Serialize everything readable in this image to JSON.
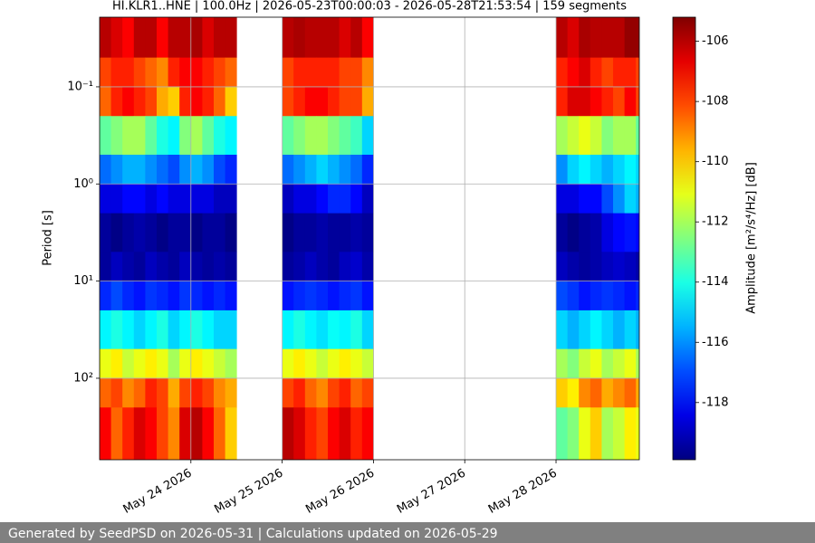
{
  "chart_data": {
    "type": "spectrogram",
    "title": "HI.KLR1..HNE | 100.0Hz | 2026-05-23T00:00:03 - 2026-05-28T21:53:54 | 159 segments",
    "ylabel": "Period [s]",
    "colorbar_label": "Amplitude [m²/s⁴/Hz] [dB]",
    "colormap": "jet",
    "yscale": "log",
    "y_inverted": true,
    "grid": true,
    "xlim": [
      "2026-05-23T00:00:03",
      "2026-05-28T21:53:54"
    ],
    "xticks": [
      {
        "value": "2026-05-24",
        "label": "May 24 2026"
      },
      {
        "value": "2026-05-25",
        "label": "May 25 2026"
      },
      {
        "value": "2026-05-26",
        "label": "May 26 2026"
      },
      {
        "value": "2026-05-27",
        "label": "May 27 2026"
      },
      {
        "value": "2026-05-28",
        "label": "May 28 2026"
      }
    ],
    "ylim": [
      0.0192,
      690
    ],
    "yticks": [
      {
        "value": 0.1,
        "label": "10⁻¹"
      },
      {
        "value": 1,
        "label": "10⁰"
      },
      {
        "value": 10,
        "label": "10¹"
      },
      {
        "value": 100,
        "label": "10²"
      }
    ],
    "clim": [
      -119.9,
      -105.2
    ],
    "cticks": [
      -106,
      -108,
      -110,
      -112,
      -114,
      -116,
      -118
    ],
    "x": [
      "2026-05-23T00:00",
      "2026-05-23T03:00",
      "2026-05-23T06:00",
      "2026-05-23T09:00",
      "2026-05-23T12:00",
      "2026-05-23T15:00",
      "2026-05-23T18:00",
      "2026-05-23T21:00",
      "2026-05-24T00:00",
      "2026-05-24T03:00",
      "2026-05-24T06:00",
      "2026-05-24T09:00",
      "2026-05-25T00:00",
      "2026-05-25T03:00",
      "2026-05-25T06:00",
      "2026-05-25T09:00",
      "2026-05-25T12:00",
      "2026-05-25T15:00",
      "2026-05-25T18:00",
      "2026-05-25T21:00",
      "2026-05-28T00:00",
      "2026-05-28T03:00",
      "2026-05-28T06:00",
      "2026-05-28T09:00",
      "2026-05-28T12:00",
      "2026-05-28T15:00",
      "2026-05-28T18:00",
      "2026-05-28T21:00"
    ],
    "ybins": [
      0.0192,
      0.05,
      0.1,
      0.2,
      0.5,
      1,
      2,
      5,
      10,
      20,
      50,
      100,
      200,
      690
    ],
    "values": [
      [
        -106,
        -106.5,
        -107,
        -106,
        -106,
        -107,
        -106,
        -106,
        -105.8,
        -106.5,
        -106,
        -106,
        -106,
        -105.8,
        -106,
        -106,
        -106,
        -106.5,
        -106,
        -107,
        -106,
        -106.5,
        -105.8,
        -106,
        -106,
        -106,
        -105.5,
        -105.5
      ],
      [
        -108,
        -107.5,
        -107.5,
        -108,
        -108.5,
        -109,
        -107.5,
        -107,
        -107,
        -107.5,
        -108,
        -108.5,
        -108,
        -107.5,
        -107.5,
        -107.5,
        -107.5,
        -108,
        -108,
        -109,
        -107.5,
        -107,
        -106.5,
        -107.5,
        -108,
        -107.5,
        -107.5,
        -108
      ],
      [
        -108.5,
        -107.5,
        -107,
        -107.5,
        -108,
        -109.5,
        -110,
        -107.5,
        -107,
        -107.5,
        -108.5,
        -110,
        -108,
        -107.5,
        -107,
        -107,
        -107.5,
        -108,
        -108,
        -109.5,
        -107.5,
        -106.5,
        -106.5,
        -107,
        -107.5,
        -108,
        -107,
        -108
      ],
      [
        -113,
        -112.5,
        -112,
        -112,
        -113,
        -114,
        -114.5,
        -112.5,
        -112,
        -113,
        -114,
        -114.5,
        -113,
        -112.5,
        -112,
        -112,
        -112.5,
        -113,
        -113.5,
        -115,
        -112,
        -111.5,
        -111,
        -111.5,
        -112.5,
        -112,
        -112,
        -113
      ],
      [
        -116.5,
        -116,
        -115.5,
        -115.5,
        -116,
        -116.5,
        -117,
        -116,
        -115.5,
        -116,
        -117,
        -117.5,
        -116.5,
        -116,
        -115.5,
        -115,
        -115.5,
        -116,
        -116.5,
        -117.5,
        -116,
        -115,
        -114.5,
        -115,
        -115.5,
        -115,
        -114.5,
        -115
      ],
      [
        -118.5,
        -118.5,
        -118,
        -118,
        -118.5,
        -118,
        -118.5,
        -118.5,
        -118.5,
        -118.5,
        -119,
        -119,
        -119,
        -118.5,
        -118.5,
        -118,
        -117.5,
        -117.5,
        -118,
        -119,
        -118.5,
        -118.5,
        -118,
        -118,
        -117,
        -116,
        -115,
        -115.5
      ],
      [
        -119.5,
        -119.8,
        -119.5,
        -119.3,
        -119.5,
        -119.8,
        -119.5,
        -119.5,
        -119.8,
        -119.5,
        -119.5,
        -119.8,
        -119.8,
        -119.5,
        -119.5,
        -119.3,
        -119.5,
        -119.5,
        -119.3,
        -119.5,
        -119.5,
        -119.8,
        -119.5,
        -119.3,
        -118.5,
        -118,
        -117.8,
        -118
      ],
      [
        -119.5,
        -119,
        -119.3,
        -119.5,
        -119,
        -119.3,
        -119.5,
        -119,
        -119.3,
        -119.5,
        -119.3,
        -119.5,
        -119.5,
        -119.3,
        -119,
        -119.3,
        -119.5,
        -119,
        -118.8,
        -119.3,
        -119,
        -119.3,
        -119.5,
        -119.3,
        -119,
        -118.8,
        -119,
        -119.3
      ],
      [
        -117.5,
        -117,
        -117.5,
        -117.8,
        -117.3,
        -117.5,
        -117.8,
        -117.3,
        -117.5,
        -117.8,
        -117.5,
        -117.8,
        -117.8,
        -117.5,
        -117.3,
        -117.5,
        -117.8,
        -117.5,
        -117.3,
        -117.8,
        -117,
        -117.3,
        -117.8,
        -117.5,
        -117.3,
        -117.5,
        -117.8,
        -117.5
      ],
      [
        -114.5,
        -114,
        -114.5,
        -115,
        -114.5,
        -114,
        -115,
        -114.5,
        -114,
        -114.5,
        -115,
        -115,
        -114.5,
        -114,
        -114.5,
        -114.8,
        -114.3,
        -114.5,
        -114,
        -115,
        -115,
        -115.5,
        -115,
        -114.5,
        -115,
        -115.5,
        -115,
        -115.5
      ],
      [
        -111,
        -110.5,
        -111.5,
        -111,
        -110.5,
        -111,
        -112,
        -111,
        -110.5,
        -111,
        -111.5,
        -112,
        -111,
        -110.5,
        -111,
        -111.5,
        -111,
        -110.5,
        -111,
        -111.5,
        -112,
        -112.5,
        -111.5,
        -111,
        -112,
        -111.5,
        -111,
        -112
      ],
      [
        -108.5,
        -108,
        -109,
        -108.5,
        -107.5,
        -108,
        -109.5,
        -108,
        -107.5,
        -108,
        -109,
        -109.5,
        -108,
        -107.5,
        -108.5,
        -109,
        -108,
        -107.5,
        -108.5,
        -108,
        -110,
        -110.5,
        -109,
        -108.5,
        -109.5,
        -109,
        -108.5,
        -109.5
      ],
      [
        -107,
        -108.5,
        -107.5,
        -106.5,
        -107,
        -108,
        -109,
        -106.5,
        -106,
        -107,
        -108.5,
        -110,
        -106,
        -106.5,
        -107.5,
        -108,
        -107,
        -106.5,
        -107.5,
        -107,
        -113,
        -112.5,
        -111,
        -110,
        -112,
        -111.5,
        -110.5,
        -111
      ]
    ]
  },
  "footer": {
    "text": "Generated by SeedPSD on 2026-05-31 | Calculations updated on 2026-05-29"
  }
}
